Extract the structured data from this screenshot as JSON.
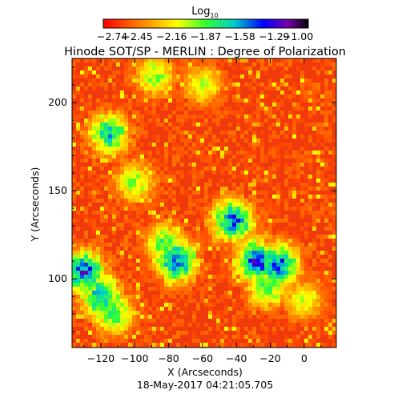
{
  "chart_data": {
    "type": "heatmap",
    "title": "Hinode SOT/SP - MERLIN : Degree of Polarization",
    "colorbar": {
      "label_main": "Log",
      "label_sub": "10",
      "ticks": [
        "-2.74",
        "-2.45",
        "-2.16",
        "-1.87",
        "-1.58",
        "-1.29",
        "-1.00"
      ],
      "range": [
        -2.74,
        -1.0
      ],
      "colormap": "rainbow (red → yellow → green → cyan → blue → purple → black)"
    },
    "xlabel": "X (Arcseconds)",
    "ylabel": "Y (Arcseconds)",
    "xlim": [
      -137,
      19
    ],
    "ylim": [
      61,
      225
    ],
    "xticks": [
      -120,
      -100,
      -80,
      -60,
      -40,
      -20,
      0
    ],
    "yticks": [
      100,
      150,
      200
    ],
    "xtick_labels": [
      "-120",
      "-100",
      "-80",
      "-60",
      "-40",
      "-20",
      "0"
    ],
    "ytick_labels": [
      "100",
      "150",
      "200"
    ],
    "grid": false,
    "background_level": -2.7,
    "polarization_patches": [
      {
        "x": -130,
        "y": 104,
        "level": -1.3
      },
      {
        "x": -120,
        "y": 90,
        "level": -1.5
      },
      {
        "x": -112,
        "y": 80,
        "level": -1.8
      },
      {
        "x": -115,
        "y": 182,
        "level": -1.6
      },
      {
        "x": -75,
        "y": 110,
        "level": -1.4
      },
      {
        "x": -82,
        "y": 120,
        "level": -1.8
      },
      {
        "x": -42,
        "y": 133,
        "level": -1.4
      },
      {
        "x": -28,
        "y": 110,
        "level": -1.3
      },
      {
        "x": -15,
        "y": 108,
        "level": -1.4
      },
      {
        "x": -22,
        "y": 95,
        "level": -1.8
      },
      {
        "x": -100,
        "y": 155,
        "level": -1.9
      },
      {
        "x": 0,
        "y": 88,
        "level": -2.0
      },
      {
        "x": -60,
        "y": 210,
        "level": -2.0
      },
      {
        "x": -88,
        "y": 215,
        "level": -1.9
      }
    ]
  },
  "footer": {
    "timestamp": "18-May-2017 04:21:05.705"
  }
}
